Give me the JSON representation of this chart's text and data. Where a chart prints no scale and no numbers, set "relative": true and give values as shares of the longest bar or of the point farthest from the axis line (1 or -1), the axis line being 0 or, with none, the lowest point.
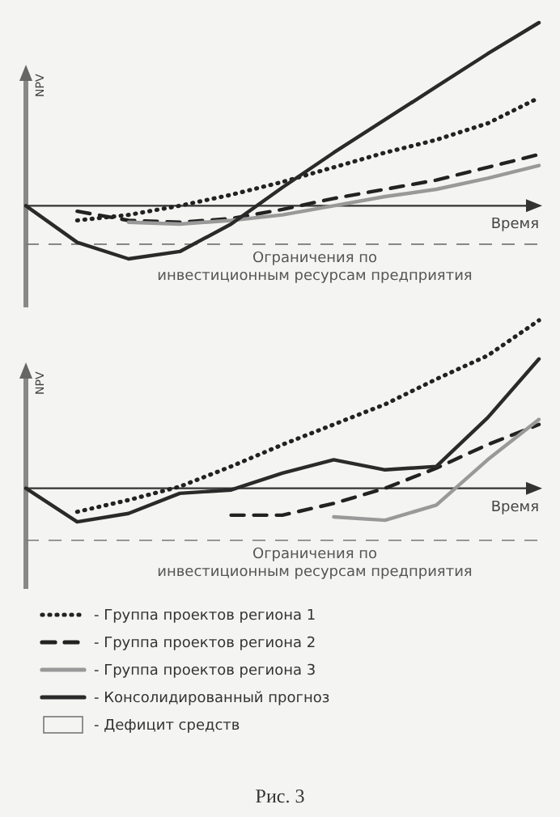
{
  "chart_data": [
    {
      "type": "line",
      "relative": true,
      "ylabel": "NPV",
      "xlabel": "Время",
      "categories": [
        null,
        null,
        null,
        null,
        null,
        null,
        null,
        null,
        null,
        null,
        null
      ],
      "marker": "none",
      "legend": false,
      "ref_lines": [
        {
          "axis": "y",
          "value": -0.21,
          "label": "Ограничения по инвестиционным ресурсам предприятия",
          "color": "#777777",
          "line_style": "dashed"
        }
      ],
      "series": [
        {
          "color": "#222222",
          "line_style": "dotted",
          "values": [
            null,
            -0.08,
            -0.05,
            0,
            0.06,
            0.13,
            0.21,
            0.29,
            0.36,
            0.45,
            0.59
          ]
        },
        {
          "color": "#222222",
          "line_style": "dashed",
          "values": [
            null,
            -0.03,
            -0.08,
            -0.09,
            -0.07,
            -0.02,
            0.04,
            0.09,
            0.14,
            0.21,
            0.28
          ]
        },
        {
          "color": "#999999",
          "line_style": "solid",
          "values": [
            null,
            null,
            -0.09,
            -0.1,
            -0.08,
            -0.05,
            0,
            0.05,
            0.09,
            0.15,
            0.22
          ]
        },
        {
          "color": "#2a2a2a",
          "line_style": "solid",
          "values": [
            0,
            -0.2,
            -0.29,
            -0.25,
            -0.1,
            0.1,
            0.29,
            0.47,
            0.65,
            0.83,
            1
          ]
        }
      ]
    },
    {
      "type": "line",
      "relative": true,
      "ylabel": "NPV",
      "xlabel": "Время",
      "categories": [
        null,
        null,
        null,
        null,
        null,
        null,
        null,
        null,
        null,
        null,
        null
      ],
      "marker": "none",
      "legend": "bottom",
      "ref_lines": [
        {
          "axis": "y",
          "value": -0.31,
          "label": "Ограничения по инвестиционным ресурсам предприятия",
          "color": "#777777",
          "line_style": "dashed"
        }
      ],
      "annotations": [
        "- Дефицит средств",
        "Рис. 3"
      ],
      "series": [
        {
          "name": "- Группа проектов региона 1",
          "color": "#222222",
          "line_style": "dotted",
          "values": [
            null,
            -0.14,
            -0.07,
            0.01,
            0.13,
            0.26,
            0.38,
            0.5,
            0.65,
            0.79,
            1
          ]
        },
        {
          "name": "- Группа проектов региона 2",
          "color": "#222222",
          "line_style": "dashed",
          "values": [
            null,
            null,
            null,
            null,
            -0.16,
            -0.16,
            -0.09,
            0,
            0.12,
            0.26,
            0.38
          ]
        },
        {
          "name": "- Группа проектов региона 3",
          "color": "#999999",
          "line_style": "solid",
          "values": [
            null,
            null,
            null,
            null,
            null,
            null,
            -0.17,
            -0.19,
            -0.1,
            0.17,
            0.41
          ]
        },
        {
          "name": "- Консолидированный прогноз",
          "color": "#2a2a2a",
          "line_style": "solid",
          "values": [
            0,
            -0.2,
            -0.15,
            -0.03,
            -0.01,
            0.09,
            0.17,
            0.11,
            0.13,
            0.42,
            0.77
          ]
        }
      ]
    }
  ]
}
